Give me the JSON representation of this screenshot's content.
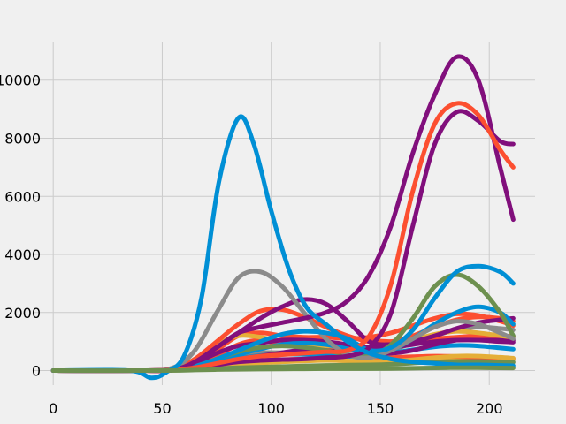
{
  "chart_data": {
    "type": "line",
    "style": "fivethirtyeight",
    "grid": true,
    "legend": "none",
    "background": "#f0f0f0",
    "xlim": [
      -9,
      221
    ],
    "ylim": [
      -500,
      11300
    ],
    "xticks": [
      0,
      50,
      100,
      150,
      200
    ],
    "yticks": [
      0,
      2000,
      4000,
      6000,
      8000,
      10000
    ],
    "xtick_labels": [
      "0",
      "50",
      "100",
      "150",
      "200"
    ],
    "ytick_labels": [
      "0",
      "2000",
      "4000",
      "6000",
      "8000",
      "10000"
    ],
    "series": [
      {
        "color": "#f0a830",
        "x": [
          0,
          40,
          55,
          65,
          75,
          85,
          95,
          105,
          115,
          125,
          135,
          145,
          155,
          165,
          175,
          185,
          195,
          205,
          211
        ],
        "y": [
          0,
          0,
          30,
          200,
          350,
          420,
          420,
          380,
          360,
          360,
          340,
          360,
          380,
          420,
          460,
          450,
          420,
          390,
          380
        ]
      },
      {
        "color": "#fc4f30",
        "x": [
          0,
          40,
          55,
          65,
          75,
          85,
          95,
          105,
          115,
          125,
          135,
          145,
          155,
          165,
          175,
          185,
          195,
          205,
          211
        ],
        "y": [
          0,
          0,
          20,
          100,
          200,
          290,
          350,
          380,
          400,
          420,
          420,
          430,
          450,
          480,
          500,
          490,
          460,
          430,
          420
        ]
      },
      {
        "color": "#8b8b8b",
        "x": [
          0,
          40,
          55,
          65,
          75,
          85,
          95,
          105,
          115,
          125,
          135,
          145,
          155,
          165,
          175,
          185,
          195,
          205,
          211
        ],
        "y": [
          0,
          0,
          30,
          200,
          400,
          550,
          620,
          620,
          600,
          560,
          500,
          520,
          700,
          950,
          1200,
          1400,
          1500,
          1450,
          1400
        ]
      },
      {
        "color": "#008fd5",
        "x": [
          0,
          40,
          55,
          65,
          75,
          85,
          95,
          105,
          115,
          125,
          135,
          145,
          155,
          165,
          175,
          185,
          195,
          205,
          211
        ],
        "y": [
          0,
          0,
          20,
          120,
          280,
          420,
          520,
          560,
          560,
          520,
          480,
          500,
          600,
          720,
          820,
          870,
          850,
          780,
          740
        ]
      },
      {
        "color": "#810f7c",
        "x": [
          0,
          40,
          55,
          65,
          75,
          85,
          95,
          105,
          115,
          125,
          135,
          145,
          155,
          165,
          175,
          185,
          195,
          205,
          211
        ],
        "y": [
          0,
          0,
          20,
          100,
          250,
          380,
          500,
          620,
          720,
          780,
          740,
          650,
          600,
          700,
          900,
          1050,
          1100,
          1080,
          1050
        ]
      },
      {
        "color": "#e5ae38",
        "x": [
          0,
          40,
          55,
          65,
          75,
          85,
          95,
          105,
          115,
          125,
          135,
          145,
          155,
          165,
          175,
          185,
          195,
          205,
          211
        ],
        "y": [
          0,
          0,
          10,
          60,
          120,
          200,
          260,
          300,
          330,
          350,
          340,
          320,
          330,
          380,
          450,
          500,
          500,
          460,
          430
        ]
      },
      {
        "color": "#6d904f",
        "x": [
          0,
          40,
          55,
          65,
          75,
          85,
          95,
          105,
          115,
          125,
          135,
          145,
          155,
          165,
          175,
          185,
          195,
          205,
          211
        ],
        "y": [
          0,
          0,
          10,
          40,
          70,
          100,
          120,
          140,
          160,
          180,
          190,
          200,
          220,
          260,
          300,
          320,
          320,
          300,
          290
        ]
      },
      {
        "color": "#fc4f30",
        "x": [
          0,
          40,
          55,
          65,
          75,
          85,
          95,
          105,
          115,
          125,
          135,
          145,
          155,
          165,
          175,
          185,
          195,
          205,
          211
        ],
        "y": [
          0,
          0,
          20,
          150,
          500,
          900,
          1050,
          900,
          1000,
          1150,
          1150,
          1050,
          1000,
          1050,
          1100,
          1150,
          1200,
          1200,
          1180
        ]
      },
      {
        "color": "#fc4f30",
        "x": [
          0,
          40,
          55,
          65,
          75,
          85,
          95,
          105,
          115,
          125,
          135,
          145,
          155,
          165,
          175,
          185,
          195,
          205,
          211
        ],
        "y": [
          0,
          0,
          20,
          200,
          700,
          1200,
          1300,
          1200,
          1150,
          1150,
          1100,
          1150,
          1300,
          1550,
          1800,
          1950,
          1900,
          1700,
          1550
        ]
      },
      {
        "color": "#e5ae38",
        "x": [
          0,
          40,
          55,
          65,
          75,
          85,
          95,
          105,
          115,
          125,
          135,
          145,
          155,
          165,
          175,
          185,
          195,
          205,
          211
        ],
        "y": [
          0,
          0,
          30,
          400,
          900,
          1200,
          1150,
          1000,
          900,
          850,
          800,
          750,
          850,
          1050,
          1250,
          1350,
          1300,
          1200,
          1150
        ]
      },
      {
        "color": "#810f7c",
        "x": [
          0,
          40,
          55,
          65,
          75,
          85,
          95,
          105,
          115,
          125,
          135,
          145,
          155,
          165,
          175,
          185,
          195,
          205,
          211
        ],
        "y": [
          0,
          0,
          20,
          250,
          600,
          850,
          950,
          1050,
          1050,
          1000,
          900,
          800,
          800,
          900,
          1000,
          1050,
          1050,
          1000,
          980
        ]
      },
      {
        "color": "#fc4f30",
        "x": [
          0,
          40,
          55,
          65,
          75,
          85,
          95,
          105,
          115,
          125,
          135,
          145,
          155,
          165,
          175,
          185,
          195,
          205,
          211
        ],
        "y": [
          0,
          0,
          30,
          400,
          1000,
          1600,
          2050,
          2100,
          1850,
          1500,
          1200,
          1000,
          1000,
          1200,
          1500,
          1750,
          1850,
          1800,
          1700
        ]
      },
      {
        "color": "#810f7c",
        "x": [
          0,
          40,
          55,
          65,
          75,
          85,
          95,
          105,
          115,
          125,
          135,
          145,
          155,
          165,
          175,
          185,
          195,
          205,
          211
        ],
        "y": [
          0,
          0,
          20,
          300,
          800,
          1300,
          1800,
          2200,
          2450,
          2300,
          1700,
          1000,
          900,
          1000,
          1200,
          1450,
          1650,
          1750,
          1800
        ]
      },
      {
        "color": "#008fd5",
        "x": [
          0,
          40,
          55,
          65,
          75,
          85,
          95,
          105,
          115,
          125,
          135,
          145,
          155,
          165,
          175,
          185,
          195,
          205,
          211
        ],
        "y": [
          0,
          0,
          20,
          120,
          300,
          550,
          750,
          900,
          950,
          900,
          750,
          600,
          700,
          1100,
          1600,
          2000,
          2200,
          2000,
          1600
        ]
      },
      {
        "color": "#6d904f",
        "x": [
          0,
          40,
          55,
          65,
          75,
          85,
          95,
          105,
          115,
          125,
          135,
          145,
          155,
          165,
          175,
          185,
          195,
          205,
          211
        ],
        "y": [
          0,
          0,
          20,
          150,
          400,
          650,
          800,
          850,
          800,
          700,
          550,
          500,
          900,
          1800,
          2900,
          3300,
          2900,
          2000,
          1200
        ]
      },
      {
        "color": "#8b8b8b",
        "x": [
          0,
          40,
          55,
          65,
          75,
          85,
          95,
          105,
          115,
          125,
          135,
          145,
          155,
          165,
          175,
          185,
          195,
          205,
          211
        ],
        "y": [
          0,
          0,
          100,
          700,
          2000,
          3200,
          3400,
          2900,
          2000,
          1100,
          550,
          450,
          700,
          1100,
          1500,
          1700,
          1600,
          1300,
          1100
        ]
      },
      {
        "color": "#008fd5",
        "x": [
          0,
          40,
          55,
          65,
          75,
          85,
          95,
          105,
          115,
          125,
          135,
          145,
          155,
          165,
          175,
          185,
          195,
          205,
          211
        ],
        "y": [
          0,
          0,
          20,
          150,
          400,
          700,
          1000,
          1250,
          1350,
          1300,
          1100,
          700,
          800,
          1400,
          2500,
          3400,
          3600,
          3400,
          3000
        ]
      },
      {
        "color": "#810f7c",
        "x": [
          0,
          40,
          55,
          65,
          75,
          85,
          95,
          105,
          115,
          125,
          135,
          145,
          155,
          165,
          175,
          185,
          195,
          205,
          211
        ],
        "y": [
          0,
          0,
          30,
          300,
          800,
          1300,
          1500,
          1650,
          1800,
          2000,
          2400,
          3300,
          5000,
          7500,
          9500,
          10800,
          10000,
          7000,
          5200
        ]
      },
      {
        "color": "#810f7c",
        "x": [
          0,
          40,
          55,
          65,
          75,
          85,
          95,
          105,
          115,
          125,
          135,
          145,
          155,
          165,
          175,
          185,
          195,
          205,
          211
        ],
        "y": [
          0,
          0,
          20,
          100,
          200,
          300,
          350,
          380,
          400,
          450,
          500,
          800,
          2000,
          5000,
          7800,
          8900,
          8600,
          7900,
          7800
        ]
      },
      {
        "color": "#fc4f30",
        "x": [
          0,
          40,
          55,
          65,
          75,
          85,
          95,
          105,
          115,
          125,
          135,
          145,
          155,
          165,
          175,
          185,
          195,
          205,
          211
        ],
        "y": [
          0,
          0,
          20,
          100,
          250,
          400,
          500,
          550,
          600,
          650,
          700,
          1200,
          3000,
          6200,
          8500,
          9200,
          8800,
          7600,
          7000
        ]
      },
      {
        "color": "#008fd5",
        "x": [
          0,
          35,
          45,
          52,
          60,
          68,
          76,
          85,
          92,
          100,
          108,
          116,
          125,
          135,
          145,
          155,
          165,
          175,
          185,
          195,
          205,
          211
        ],
        "y": [
          0,
          0,
          -250,
          -50,
          500,
          2500,
          6500,
          8700,
          7800,
          5500,
          3500,
          2200,
          1600,
          1000,
          600,
          400,
          300,
          250,
          200,
          200,
          180,
          170
        ]
      },
      {
        "color": "#6d904f",
        "x": [
          0,
          40,
          55,
          65,
          75,
          85,
          95,
          105,
          115,
          125,
          135,
          145,
          155,
          165,
          175,
          185,
          195,
          205,
          211
        ],
        "y": [
          0,
          0,
          5,
          20,
          35,
          45,
          50,
          55,
          60,
          65,
          65,
          65,
          70,
          80,
          95,
          100,
          100,
          95,
          90
        ]
      }
    ]
  }
}
